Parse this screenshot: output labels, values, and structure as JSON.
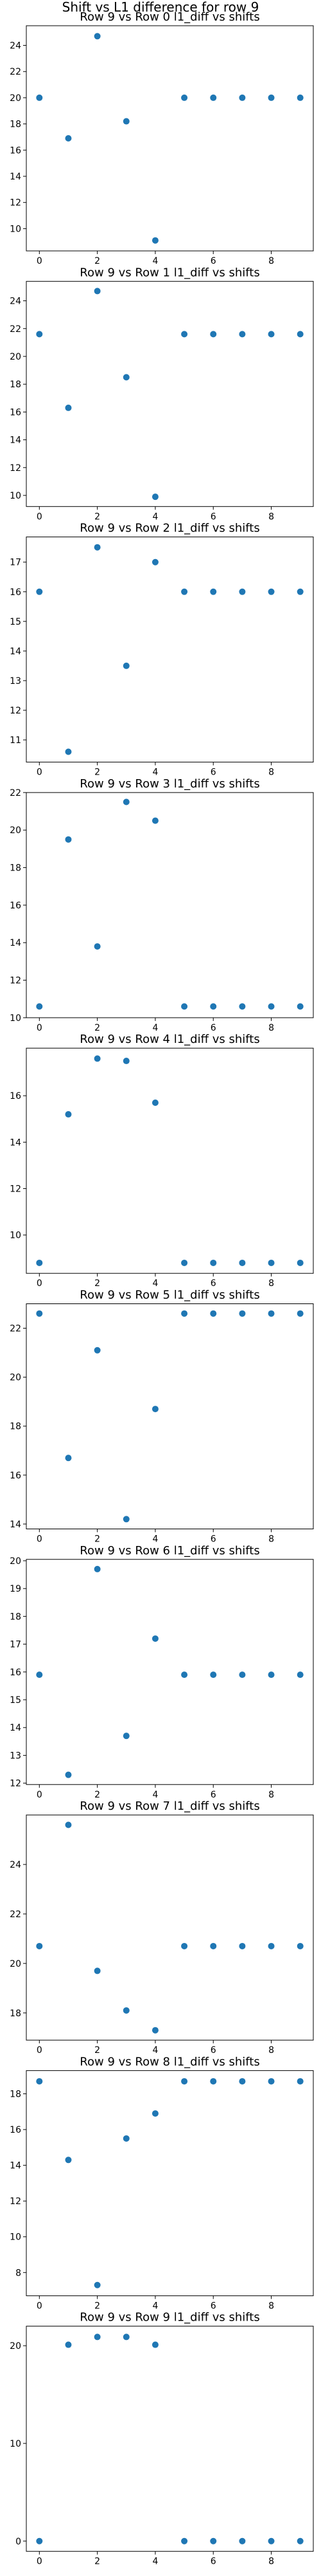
{
  "figure_title": "Shift vs L1 difference for row 9",
  "colors": {
    "marker": "#1f77b4",
    "axes": "#000000",
    "background": "#ffffff"
  },
  "chart_data": [
    {
      "type": "scatter",
      "title": "Row 9 vs Row 0 l1_diff vs shifts",
      "x": [
        0,
        1,
        2,
        3,
        4,
        5,
        6,
        7,
        8,
        9
      ],
      "y": [
        20.0,
        16.9,
        24.7,
        18.2,
        9.1,
        20.0,
        20.0,
        20.0,
        20.0,
        20.0
      ],
      "xlim": [
        -0.45,
        9.45
      ],
      "ylim": [
        8.3,
        25.5
      ],
      "xticks": [
        0,
        2,
        4,
        6,
        8
      ],
      "yticks": [
        10,
        12,
        14,
        16,
        18,
        20,
        22,
        24
      ],
      "grid": false
    },
    {
      "type": "scatter",
      "title": "Row 9 vs Row 1 l1_diff vs shifts",
      "x": [
        0,
        1,
        2,
        3,
        4,
        5,
        6,
        7,
        8,
        9
      ],
      "y": [
        21.6,
        16.3,
        24.7,
        18.5,
        9.9,
        21.6,
        21.6,
        21.6,
        21.6,
        21.6
      ],
      "xlim": [
        -0.45,
        9.45
      ],
      "ylim": [
        9.2,
        25.4
      ],
      "xticks": [
        0,
        2,
        4,
        6,
        8
      ],
      "yticks": [
        10,
        12,
        14,
        16,
        18,
        20,
        22,
        24
      ],
      "grid": false
    },
    {
      "type": "scatter",
      "title": "Row 9 vs Row 2 l1_diff vs shifts",
      "x": [
        0,
        1,
        2,
        3,
        4,
        5,
        6,
        7,
        8,
        9
      ],
      "y": [
        16.0,
        10.6,
        17.5,
        13.5,
        17.0,
        16.0,
        16.0,
        16.0,
        16.0,
        16.0
      ],
      "xlim": [
        -0.45,
        9.45
      ],
      "ylim": [
        10.25,
        17.85
      ],
      "xticks": [
        0,
        2,
        4,
        6,
        8
      ],
      "yticks": [
        11,
        12,
        13,
        14,
        15,
        16,
        17
      ],
      "grid": false
    },
    {
      "type": "scatter",
      "title": "Row 9 vs Row 3 l1_diff vs shifts",
      "x": [
        0,
        1,
        2,
        3,
        4,
        5,
        6,
        7,
        8,
        9
      ],
      "y": [
        10.6,
        19.5,
        13.8,
        21.5,
        20.5,
        10.6,
        10.6,
        10.6,
        10.6,
        10.6
      ],
      "xlim": [
        -0.45,
        9.45
      ],
      "ylim": [
        10.0,
        22.0
      ],
      "xticks": [
        0,
        2,
        4,
        6,
        8
      ],
      "yticks": [
        10,
        12,
        14,
        16,
        18,
        20,
        22
      ],
      "grid": false
    },
    {
      "type": "scatter",
      "title": "Row 9 vs Row 4 l1_diff vs shifts",
      "x": [
        0,
        1,
        2,
        3,
        4,
        5,
        6,
        7,
        8,
        9
      ],
      "y": [
        8.8,
        15.2,
        17.6,
        17.5,
        15.7,
        8.8,
        8.8,
        8.8,
        8.8,
        8.8
      ],
      "xlim": [
        -0.45,
        9.45
      ],
      "ylim": [
        8.35,
        18.05
      ],
      "xticks": [
        0,
        2,
        4,
        6,
        8
      ],
      "yticks": [
        10,
        12,
        14,
        16
      ],
      "grid": false
    },
    {
      "type": "scatter",
      "title": "Row 9 vs Row 5 l1_diff vs shifts",
      "x": [
        0,
        1,
        2,
        3,
        4,
        5,
        6,
        7,
        8,
        9
      ],
      "y": [
        22.6,
        16.7,
        21.1,
        14.2,
        18.7,
        22.6,
        22.6,
        22.6,
        22.6,
        22.6
      ],
      "xlim": [
        -0.45,
        9.45
      ],
      "ylim": [
        13.8,
        23.0
      ],
      "xticks": [
        0,
        2,
        4,
        6,
        8
      ],
      "yticks": [
        14,
        16,
        18,
        20,
        22
      ],
      "grid": false
    },
    {
      "type": "scatter",
      "title": "Row 9 vs Row 6 l1_diff vs shifts",
      "x": [
        0,
        1,
        2,
        3,
        4,
        5,
        6,
        7,
        8,
        9
      ],
      "y": [
        15.9,
        12.3,
        19.7,
        13.7,
        17.2,
        15.9,
        15.9,
        15.9,
        15.9,
        15.9
      ],
      "xlim": [
        -0.45,
        9.45
      ],
      "ylim": [
        11.95,
        20.05
      ],
      "xticks": [
        0,
        2,
        4,
        6,
        8
      ],
      "yticks": [
        12,
        13,
        14,
        15,
        16,
        17,
        18,
        19,
        20
      ],
      "grid": false
    },
    {
      "type": "scatter",
      "title": "Row 9 vs Row 7 l1_diff vs shifts",
      "x": [
        0,
        1,
        2,
        3,
        4,
        5,
        6,
        7,
        8,
        9
      ],
      "y": [
        20.7,
        25.6,
        19.7,
        18.1,
        17.3,
        20.7,
        20.7,
        20.7,
        20.7,
        20.7
      ],
      "xlim": [
        -0.45,
        9.45
      ],
      "ylim": [
        16.9,
        26.0
      ],
      "xticks": [
        0,
        2,
        4,
        6,
        8
      ],
      "yticks": [
        18,
        20,
        22,
        24
      ],
      "grid": false
    },
    {
      "type": "scatter",
      "title": "Row 9 vs Row 8 l1_diff vs shifts",
      "x": [
        0,
        1,
        2,
        3,
        4,
        5,
        6,
        7,
        8,
        9
      ],
      "y": [
        18.7,
        14.3,
        7.3,
        15.5,
        16.9,
        18.7,
        18.7,
        18.7,
        18.7,
        18.7
      ],
      "xlim": [
        -0.45,
        9.45
      ],
      "ylim": [
        6.7,
        19.3
      ],
      "xticks": [
        0,
        2,
        4,
        6,
        8
      ],
      "yticks": [
        8,
        10,
        12,
        14,
        16,
        18
      ],
      "grid": false
    },
    {
      "type": "scatter",
      "title": "Row 9 vs Row 9 l1_diff vs shifts",
      "x": [
        0,
        1,
        2,
        3,
        4,
        5,
        6,
        7,
        8,
        9
      ],
      "y": [
        0,
        20.1,
        20.9,
        20.9,
        20.1,
        0,
        0,
        0,
        0,
        0
      ],
      "xlim": [
        -0.45,
        9.45
      ],
      "ylim": [
        -1.05,
        22.0
      ],
      "xticks": [
        0,
        2,
        4,
        6,
        8
      ],
      "yticks": [
        0,
        10,
        20
      ],
      "grid": false
    }
  ]
}
